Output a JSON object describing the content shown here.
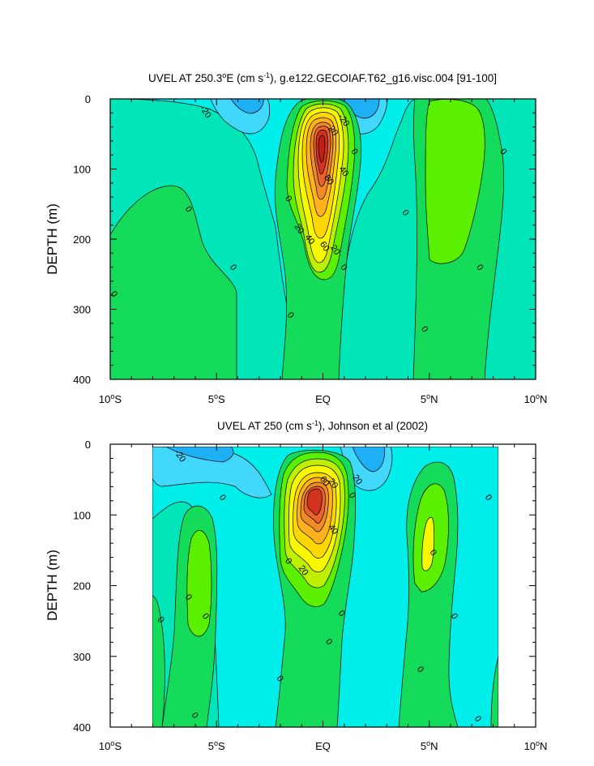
{
  "palette": {
    "c_neg40": "#0f8cf0",
    "c_neg30": "#1eb0f5",
    "c_neg20": "#41d8fb",
    "c_neg10": "#00eeea",
    "c_0": "#00e6b9",
    "c_10": "#14dc5a",
    "c_20": "#5af000",
    "c_30": "#beee00",
    "c_40": "#f8f800",
    "c_50": "#ffd700",
    "c_60": "#ffb21e",
    "c_70": "#f08c28",
    "c_80": "#e8642a",
    "c_90": "#d2321e",
    "c_100": "#c01e14"
  },
  "chart_data": [
    {
      "type": "contour",
      "title_prefix": "UVEL AT 250.3",
      "title_sup1": "o",
      "title_mid": "E (cm s",
      "title_sup2": "-1",
      "title_suffix": "), g.e122.GECOIAF.T62_g16.visc.004 [91-100]",
      "ylabel": "DEPTH (m)",
      "x_ticks": [
        {
          "num": "10",
          "deg": "o",
          "hem": "S"
        },
        {
          "num": "5",
          "deg": "o",
          "hem": "S"
        },
        {
          "num": "EQ",
          "deg": "",
          "hem": ""
        },
        {
          "num": "5",
          "deg": "o",
          "hem": "N"
        },
        {
          "num": "10",
          "deg": "o",
          "hem": "N"
        }
      ],
      "x_values": [
        -10,
        -5,
        0,
        5,
        10
      ],
      "y_ticks": [
        "0",
        "100",
        "200",
        "300",
        "400"
      ],
      "y_values": [
        0,
        100,
        200,
        300,
        400
      ],
      "xlim": [
        -10,
        10
      ],
      "ylim": [
        400,
        0
      ],
      "contour_interval": 10,
      "contour_labels": [
        {
          "text": "-20",
          "lat": -5.5,
          "depth": 18
        },
        {
          "text": "-20",
          "lat": 1.0,
          "depth": 30
        },
        {
          "text": "20",
          "lat": 0.5,
          "depth": 45
        },
        {
          "text": "0",
          "lat": 1.5,
          "depth": 75
        },
        {
          "text": "80",
          "lat": 0.3,
          "depth": 115
        },
        {
          "text": "40",
          "lat": 1.0,
          "depth": 103
        },
        {
          "text": "0",
          "lat": -1.6,
          "depth": 142
        },
        {
          "text": "0",
          "lat": -6.3,
          "depth": 157
        },
        {
          "text": "20",
          "lat": -1.1,
          "depth": 185
        },
        {
          "text": "40",
          "lat": -0.6,
          "depth": 200
        },
        {
          "text": "60",
          "lat": 0.1,
          "depth": 210
        },
        {
          "text": "20",
          "lat": 0.6,
          "depth": 215
        },
        {
          "text": "0",
          "lat": 3.9,
          "depth": 162
        },
        {
          "text": "0",
          "lat": 8.5,
          "depth": 75
        },
        {
          "text": "0",
          "lat": -9.8,
          "depth": 278
        },
        {
          "text": "0",
          "lat": -4.2,
          "depth": 240
        },
        {
          "text": "0",
          "lat": 1.0,
          "depth": 240
        },
        {
          "text": "0",
          "lat": 7.4,
          "depth": 240
        },
        {
          "text": "0",
          "lat": -1.5,
          "depth": 308
        },
        {
          "text": "0",
          "lat": 4.8,
          "depth": 328
        }
      ]
    },
    {
      "type": "contour",
      "title_prefix": "UVEL AT 250 (cm s",
      "title_sup1": "-1",
      "title_suffix": "), Johnson et al (2002)",
      "ylabel": "DEPTH (m)",
      "x_ticks": [
        {
          "num": "10",
          "deg": "o",
          "hem": "S"
        },
        {
          "num": "5",
          "deg": "o",
          "hem": "S"
        },
        {
          "num": "EQ",
          "deg": "",
          "hem": ""
        },
        {
          "num": "5",
          "deg": "o",
          "hem": "N"
        },
        {
          "num": "10",
          "deg": "o",
          "hem": "N"
        }
      ],
      "x_values": [
        -10,
        -5,
        0,
        5,
        10
      ],
      "y_ticks": [
        "0",
        "100",
        "200",
        "300",
        "400"
      ],
      "y_values": [
        0,
        100,
        200,
        300,
        400
      ],
      "xlim": [
        -10,
        10
      ],
      "ylim": [
        400,
        0
      ],
      "data_extent_lat": [
        -8,
        8.2
      ],
      "contour_interval": 10,
      "contour_labels": [
        {
          "text": "-20",
          "lat": -6.7,
          "depth": 16
        },
        {
          "text": "20",
          "lat": 0.5,
          "depth": 55
        },
        {
          "text": "60",
          "lat": 0.1,
          "depth": 52
        },
        {
          "text": "-20",
          "lat": 1.6,
          "depth": 48
        },
        {
          "text": "0",
          "lat": -4.7,
          "depth": 75
        },
        {
          "text": "0",
          "lat": 1.4,
          "depth": 72
        },
        {
          "text": "0",
          "lat": 7.8,
          "depth": 75
        },
        {
          "text": "40",
          "lat": 0.5,
          "depth": 120
        },
        {
          "text": "0",
          "lat": 5.2,
          "depth": 153
        },
        {
          "text": "0",
          "lat": -1.6,
          "depth": 165
        },
        {
          "text": "20",
          "lat": -0.9,
          "depth": 178
        },
        {
          "text": "0",
          "lat": -6.3,
          "depth": 216
        },
        {
          "text": "0",
          "lat": -7.6,
          "depth": 248
        },
        {
          "text": "0",
          "lat": -5.5,
          "depth": 243
        },
        {
          "text": "0",
          "lat": 0.9,
          "depth": 239
        },
        {
          "text": "0",
          "lat": 6.2,
          "depth": 243
        },
        {
          "text": "0",
          "lat": 0.3,
          "depth": 279
        },
        {
          "text": "0",
          "lat": 4.6,
          "depth": 318
        },
        {
          "text": "0",
          "lat": -2.0,
          "depth": 331
        },
        {
          "text": "0",
          "lat": -6.0,
          "depth": 383
        },
        {
          "text": "0",
          "lat": 7.3,
          "depth": 388
        }
      ]
    }
  ]
}
